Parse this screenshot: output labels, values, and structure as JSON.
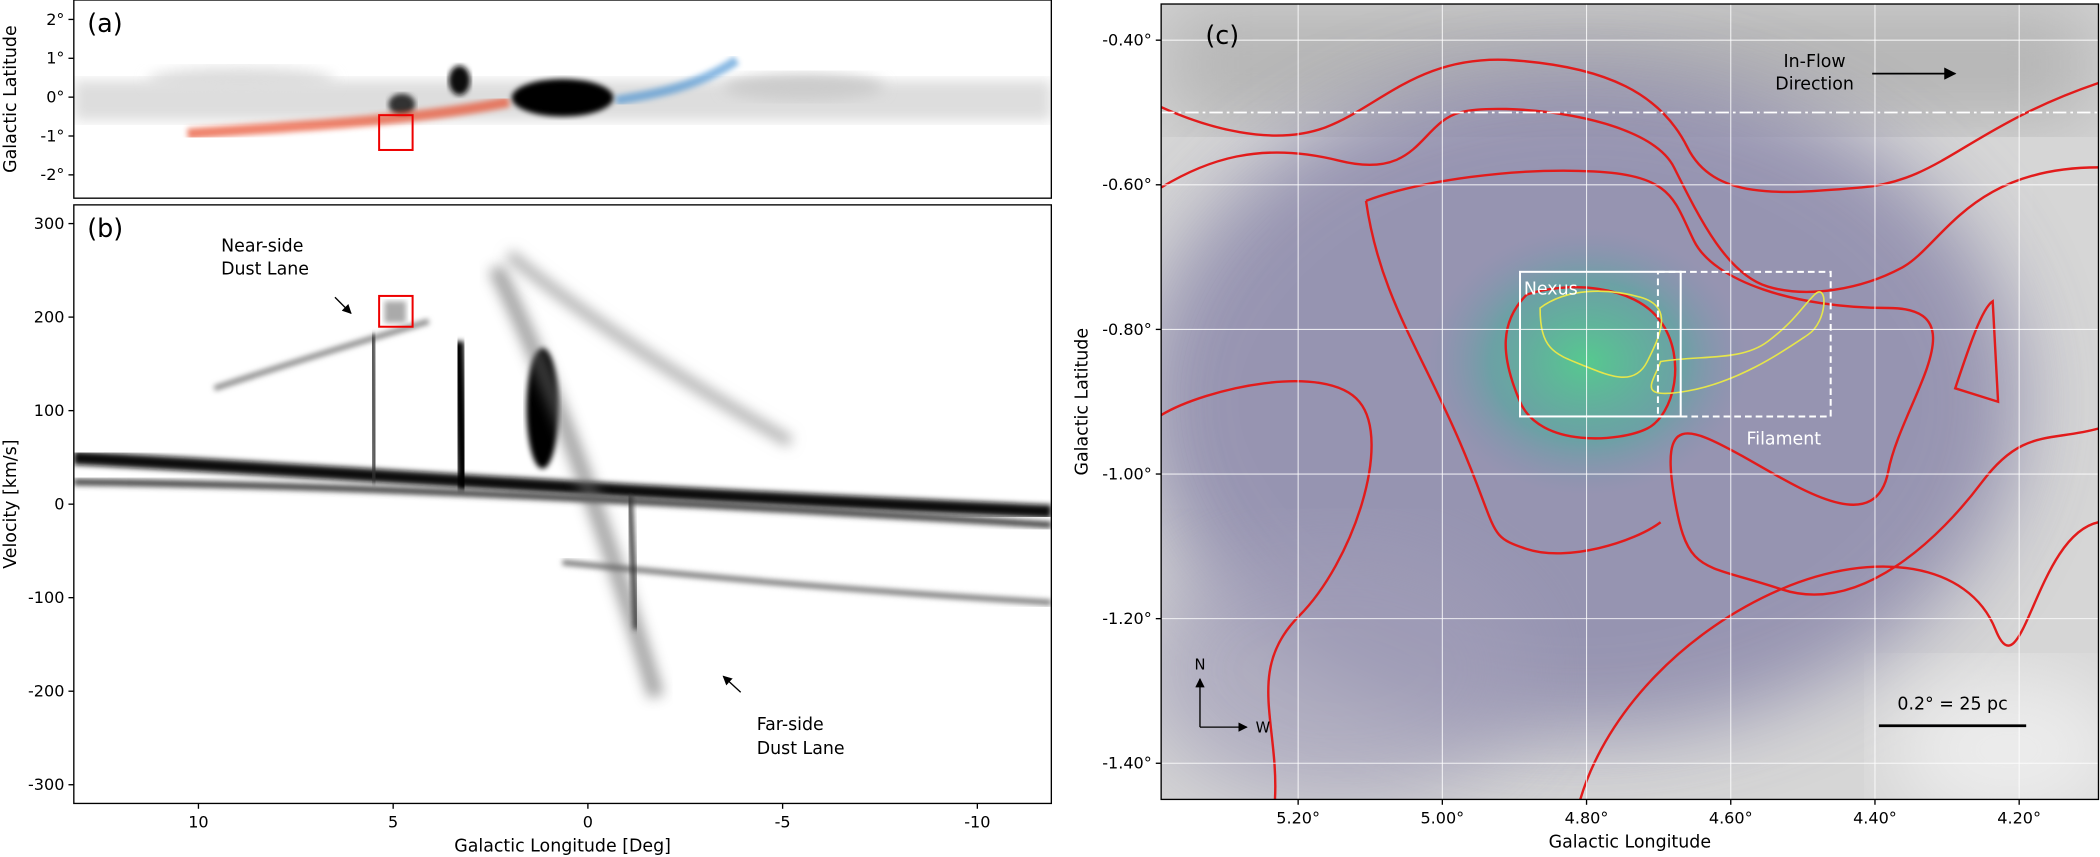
{
  "chart_data": [
    {
      "type": "image",
      "label": "(a)",
      "ylabel": "Galactic Latitude",
      "xlim": [
        13.2,
        -11.9
      ],
      "ylim": [
        -2.6,
        2.5
      ],
      "yticks": [
        {
          "value": 2,
          "label": "2°"
        },
        {
          "value": 1,
          "label": "1°"
        },
        {
          "value": 0,
          "label": "0°"
        },
        {
          "value": -1,
          "label": "-1°"
        },
        {
          "value": -2,
          "label": "-2°"
        }
      ]
    },
    {
      "type": "image",
      "label": "(b)",
      "xlabel": "Galactic Longitude [Deg]",
      "ylabel": "Velocity [km/s]",
      "xlim": [
        13.2,
        -11.9
      ],
      "ylim": [
        -320,
        320
      ],
      "xticks": [
        10,
        5,
        0,
        -5,
        -10
      ],
      "yticks": [
        300,
        200,
        100,
        0,
        -100,
        -200,
        -300
      ],
      "annotations": [
        [
          "Near-side",
          "Dust Lane"
        ],
        [
          "Far-side",
          "Dust Lane"
        ]
      ]
    },
    {
      "type": "image",
      "label": "(c)",
      "xlabel": "Galactic Longitude",
      "ylabel": "Galactic Latitude",
      "xlim": [
        5.39,
        4.09
      ],
      "ylim": [
        -1.45,
        -0.35
      ],
      "grid": true,
      "xticks": [
        {
          "value": 5.2,
          "label": "5.20°"
        },
        {
          "value": 5.0,
          "label": "5.00°"
        },
        {
          "value": 4.8,
          "label": "4.80°"
        },
        {
          "value": 4.6,
          "label": "4.60°"
        },
        {
          "value": 4.4,
          "label": "4.40°"
        },
        {
          "value": 4.2,
          "label": "4.20°"
        }
      ],
      "yticks": [
        {
          "value": -0.4,
          "label": "-0.40°"
        },
        {
          "value": -0.6,
          "label": "-0.60°"
        },
        {
          "value": -0.8,
          "label": "-0.80°"
        },
        {
          "value": -1.0,
          "label": "-1.00°"
        },
        {
          "value": -1.2,
          "label": "-1.20°"
        },
        {
          "value": -1.4,
          "label": "-1.40°"
        }
      ],
      "annotations": [
        [
          "In-Flow",
          "Direction"
        ],
        "Nexus",
        "Filament",
        "0.2° = 25 pc"
      ],
      "compass": [
        "N",
        "W"
      ]
    }
  ]
}
